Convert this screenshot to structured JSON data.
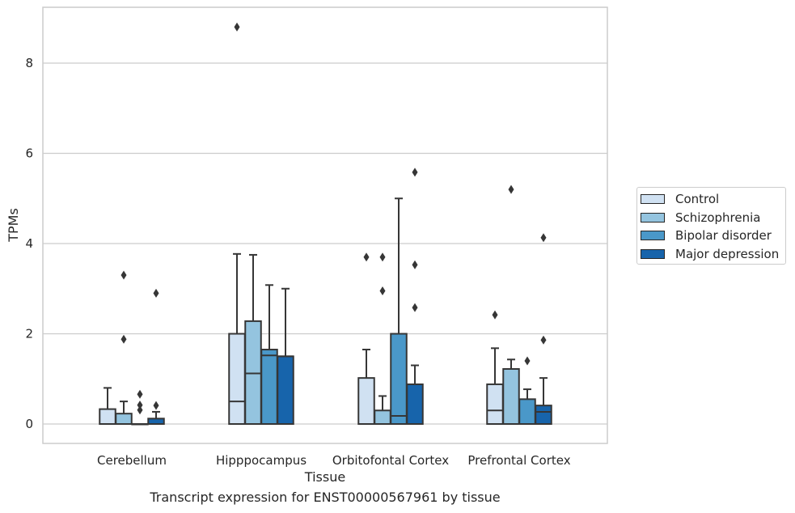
{
  "chart_data": {
    "type": "box",
    "title": "",
    "caption": "Transcript expression for ENST00000567961 by tissue",
    "xlabel": "Tissue",
    "ylabel": "TPMs",
    "ylim": [
      -0.42,
      9.3
    ],
    "yticks": [
      0,
      2,
      4,
      6,
      8
    ],
    "grid": true,
    "legend_position": "right",
    "categories": [
      "Cerebellum",
      "Hipppocampus",
      "Orbitofontal Cortex",
      "Prefrontal Cortex"
    ],
    "series": [
      {
        "name": "Control",
        "color": "#d0e1f2",
        "boxes": [
          {
            "q1": 0.0,
            "median": 0.0,
            "q3": 0.33,
            "whisker_low": 0.0,
            "whisker_high": 0.8,
            "outliers": []
          },
          {
            "q1": 0.0,
            "median": 0.5,
            "q3": 2.0,
            "whisker_low": 0.0,
            "whisker_high": 3.77,
            "outliers": [
              8.8
            ]
          },
          {
            "q1": 0.0,
            "median": 0.0,
            "q3": 1.02,
            "whisker_low": 0.0,
            "whisker_high": 1.65,
            "outliers": [
              3.7
            ]
          },
          {
            "q1": 0.0,
            "median": 0.3,
            "q3": 0.88,
            "whisker_low": 0.0,
            "whisker_high": 1.68,
            "outliers": [
              2.42
            ]
          }
        ]
      },
      {
        "name": "Schizophrenia",
        "color": "#94c4df",
        "boxes": [
          {
            "q1": 0.0,
            "median": 0.0,
            "q3": 0.23,
            "whisker_low": 0.0,
            "whisker_high": 0.5,
            "outliers": [
              3.3,
              1.88
            ]
          },
          {
            "q1": 0.0,
            "median": 1.12,
            "q3": 2.28,
            "whisker_low": 0.0,
            "whisker_high": 3.75,
            "outliers": []
          },
          {
            "q1": 0.0,
            "median": 0.0,
            "q3": 0.3,
            "whisker_low": 0.0,
            "whisker_high": 0.62,
            "outliers": [
              3.7,
              2.95
            ]
          },
          {
            "q1": 0.0,
            "median": 0.0,
            "q3": 1.22,
            "whisker_low": 0.0,
            "whisker_high": 1.43,
            "outliers": [
              5.2
            ]
          }
        ]
      },
      {
        "name": "Bipolar disorder",
        "color": "#4a98c9",
        "boxes": [
          {
            "q1": 0.0,
            "median": 0.0,
            "q3": 0.0,
            "whisker_low": 0.0,
            "whisker_high": 0.0,
            "outliers": [
              0.66,
              0.42,
              0.31
            ]
          },
          {
            "q1": 0.0,
            "median": 1.52,
            "q3": 1.65,
            "whisker_low": 0.0,
            "whisker_high": 3.08,
            "outliers": []
          },
          {
            "q1": 0.0,
            "median": 0.18,
            "q3": 2.0,
            "whisker_low": 0.0,
            "whisker_high": 5.0,
            "outliers": []
          },
          {
            "q1": 0.0,
            "median": 0.0,
            "q3": 0.55,
            "whisker_low": 0.0,
            "whisker_high": 0.77,
            "outliers": [
              1.4
            ]
          }
        ]
      },
      {
        "name": "Major depression",
        "color": "#1764ab",
        "boxes": [
          {
            "q1": 0.0,
            "median": 0.0,
            "q3": 0.12,
            "whisker_low": 0.0,
            "whisker_high": 0.27,
            "outliers": [
              2.9,
              0.41
            ]
          },
          {
            "q1": 0.0,
            "median": 1.5,
            "q3": 1.5,
            "whisker_low": 0.0,
            "whisker_high": 3.0,
            "outliers": []
          },
          {
            "q1": 0.0,
            "median": 0.88,
            "q3": 0.88,
            "whisker_low": 0.0,
            "whisker_high": 1.3,
            "outliers": [
              5.58,
              3.53,
              2.58
            ]
          },
          {
            "q1": 0.0,
            "median": 0.27,
            "q3": 0.41,
            "whisker_low": 0.0,
            "whisker_high": 1.02,
            "outliers": [
              4.13,
              1.86
            ]
          }
        ]
      }
    ]
  }
}
